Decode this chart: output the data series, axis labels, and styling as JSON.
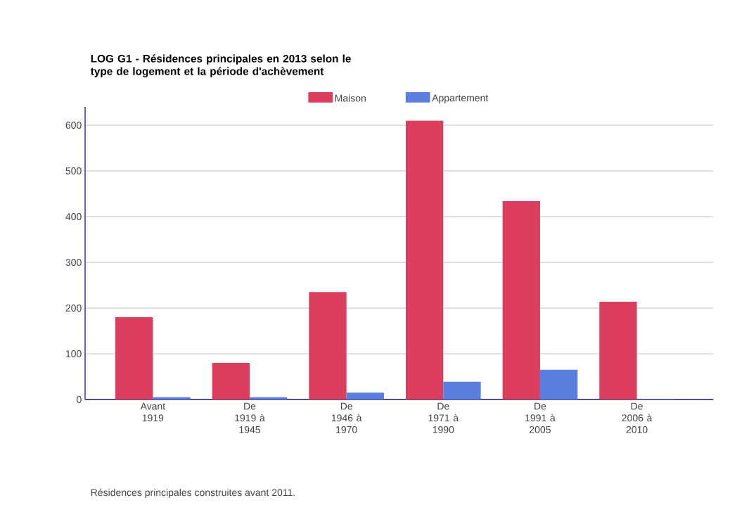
{
  "chart_data": {
    "type": "bar",
    "title": "LOG G1 - Résidences principales en 2013 selon le type de logement et la période d'achèvement",
    "categories": [
      "Avant 1919",
      "De 1919 à 1945",
      "De 1946 à 1970",
      "De 1971 à 1990",
      "De 1991 à 2005",
      "De 2006 à 2010"
    ],
    "series": [
      {
        "name": "Maison",
        "color": "#dc3e5d",
        "values": [
          180,
          80,
          235,
          610,
          434,
          214
        ]
      },
      {
        "name": "Appartement",
        "color": "#5b7fe0",
        "values": [
          5,
          5,
          15,
          39,
          65,
          1
        ]
      }
    ],
    "ylim": [
      0,
      640
    ],
    "yticks": [
      0,
      100,
      200,
      300,
      400,
      500,
      600
    ],
    "grid": "y",
    "legend": "top",
    "annotations": [
      "Résidences principales construites avant 2011."
    ]
  }
}
